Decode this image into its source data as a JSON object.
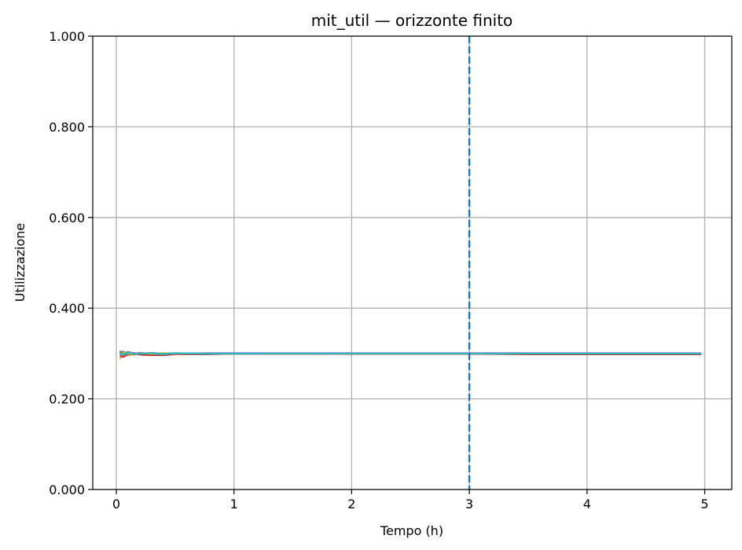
{
  "chart_data": {
    "type": "line",
    "title": "mit_util — orizzonte finito",
    "xlabel": "Tempo (h)",
    "ylabel": "Utilizzazione",
    "xlim": [
      -0.2,
      5.23
    ],
    "ylim": [
      0.0,
      1.0
    ],
    "xticks": [
      0,
      1,
      2,
      3,
      4,
      5
    ],
    "xtick_labels": [
      "0",
      "1",
      "2",
      "3",
      "4",
      "5"
    ],
    "yticks": [
      0.0,
      0.2,
      0.4,
      0.6,
      0.8,
      1.0
    ],
    "ytick_labels": [
      "0.000",
      "0.200",
      "0.400",
      "0.600",
      "0.800",
      "1.000"
    ],
    "grid": true,
    "vline": {
      "x": 3.0,
      "style": "dashed",
      "color": "#1f77b4"
    },
    "x": [
      0.03,
      0.06,
      0.1,
      0.15,
      0.2,
      0.3,
      0.4,
      0.5,
      0.75,
      1.0,
      1.5,
      2.0,
      2.5,
      3.0,
      3.5,
      4.0,
      4.5,
      4.97
    ],
    "series": [
      {
        "color": "#1f77b4",
        "values": [
          0.304,
          0.296,
          0.3,
          0.302,
          0.298,
          0.301,
          0.299,
          0.3,
          0.3,
          0.3,
          0.3,
          0.3,
          0.3,
          0.3,
          0.3,
          0.3,
          0.3,
          0.3
        ]
      },
      {
        "color": "#ff7f0e",
        "values": [
          0.288,
          0.3,
          0.296,
          0.298,
          0.301,
          0.297,
          0.299,
          0.298,
          0.299,
          0.299,
          0.3,
          0.299,
          0.299,
          0.299,
          0.299,
          0.299,
          0.299,
          0.299
        ]
      },
      {
        "color": "#2ca02c",
        "values": [
          0.306,
          0.3,
          0.304,
          0.301,
          0.299,
          0.301,
          0.3,
          0.301,
          0.3,
          0.3,
          0.3,
          0.3,
          0.3,
          0.3,
          0.3,
          0.3,
          0.3,
          0.3
        ]
      },
      {
        "color": "#d62728",
        "values": [
          0.296,
          0.292,
          0.298,
          0.3,
          0.297,
          0.296,
          0.296,
          0.298,
          0.298,
          0.299,
          0.299,
          0.299,
          0.299,
          0.299,
          0.298,
          0.298,
          0.298,
          0.298
        ]
      },
      {
        "color": "#9467bd",
        "values": [
          0.301,
          0.305,
          0.299,
          0.3,
          0.302,
          0.3,
          0.301,
          0.3,
          0.301,
          0.301,
          0.301,
          0.301,
          0.301,
          0.301,
          0.301,
          0.301,
          0.301,
          0.301
        ]
      },
      {
        "color": "#8c564b",
        "values": [
          0.294,
          0.302,
          0.301,
          0.297,
          0.3,
          0.298,
          0.297,
          0.299,
          0.299,
          0.299,
          0.299,
          0.299,
          0.299,
          0.299,
          0.299,
          0.299,
          0.299,
          0.299
        ]
      },
      {
        "color": "#e377c2",
        "values": [
          0.299,
          0.297,
          0.303,
          0.301,
          0.3,
          0.302,
          0.3,
          0.299,
          0.3,
          0.3,
          0.3,
          0.3,
          0.3,
          0.3,
          0.3,
          0.3,
          0.3,
          0.3
        ]
      },
      {
        "color": "#7f7f7f",
        "values": [
          0.302,
          0.299,
          0.298,
          0.3,
          0.299,
          0.3,
          0.298,
          0.3,
          0.299,
          0.299,
          0.3,
          0.3,
          0.3,
          0.3,
          0.3,
          0.3,
          0.3,
          0.3
        ]
      },
      {
        "color": "#bcbd22",
        "values": [
          0.297,
          0.303,
          0.3,
          0.298,
          0.301,
          0.299,
          0.301,
          0.3,
          0.3,
          0.3,
          0.3,
          0.3,
          0.3,
          0.3,
          0.3,
          0.3,
          0.3,
          0.3
        ]
      },
      {
        "color": "#17becf",
        "values": [
          0.3,
          0.298,
          0.302,
          0.299,
          0.3,
          0.301,
          0.299,
          0.301,
          0.3,
          0.3,
          0.3,
          0.3,
          0.3,
          0.3,
          0.3,
          0.3,
          0.3,
          0.3
        ]
      }
    ]
  }
}
